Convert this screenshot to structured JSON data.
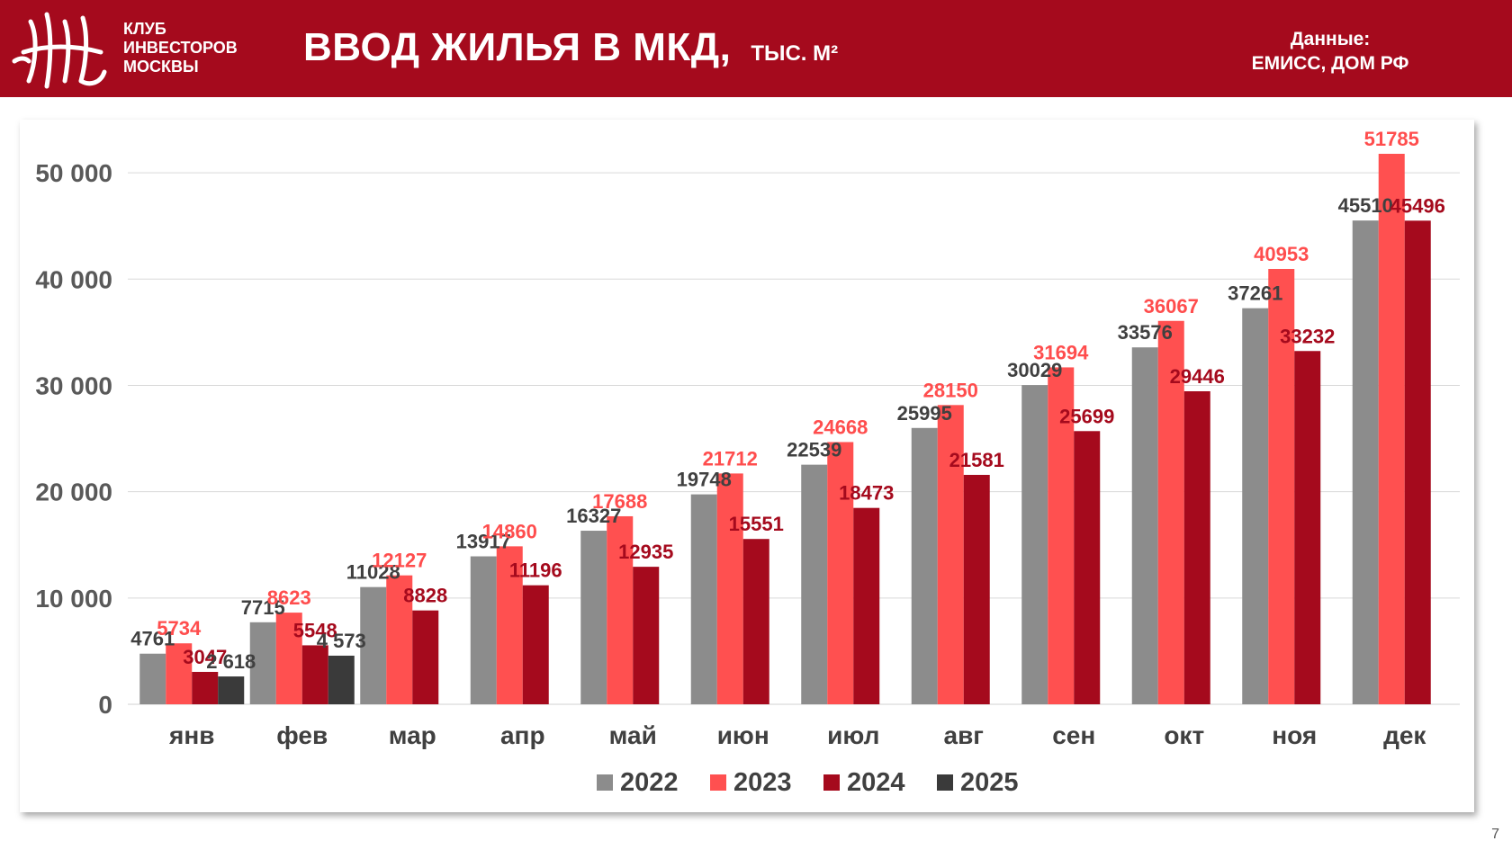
{
  "header": {
    "club_lines": [
      "КЛУБ",
      "ИНВЕСТОРОВ",
      "МОСКВЫ"
    ],
    "title": "ВВОД ЖИЛЬЯ В МКД,",
    "unit": "ТЫС. М²",
    "source_label": "Данные:",
    "source_value": "ЕМИСС, ДОМ РФ"
  },
  "page_number": "7",
  "colors": {
    "header_bg": "#a50a1d",
    "s2022": "#8c8c8c",
    "s2023": "#ff5050",
    "s2024": "#a50a1d",
    "s2025": "#3a3a3a"
  },
  "chart_data": {
    "type": "bar",
    "categories": [
      "янв",
      "фев",
      "мар",
      "апр",
      "май",
      "июн",
      "июл",
      "авг",
      "сен",
      "окт",
      "ноя",
      "дек"
    ],
    "ylim": [
      0,
      55000
    ],
    "yticks": [
      0,
      10000,
      20000,
      30000,
      40000,
      50000
    ],
    "ytick_labels": [
      "0",
      "10 000",
      "20 000",
      "30 000",
      "40 000",
      "50 000"
    ],
    "grid": true,
    "legend": "bottom",
    "series": [
      {
        "name": "2022",
        "color": "#8c8c8c",
        "label_color": "#404040",
        "values": [
          4761,
          7715,
          11028,
          13917,
          16327,
          19748,
          22539,
          25995,
          30029,
          33576,
          37261,
          45510
        ],
        "labels": [
          "4761",
          "7715",
          "11028",
          "13917",
          "16327",
          "19748",
          "22539",
          "25995",
          "30029",
          "33576",
          "37261",
          "45510"
        ]
      },
      {
        "name": "2023",
        "color": "#ff5050",
        "label_color": "#ff4d4d",
        "values": [
          5734,
          8623,
          12127,
          14860,
          17688,
          21712,
          24668,
          28150,
          31694,
          36067,
          40953,
          51785
        ],
        "labels": [
          "5734",
          "8623",
          "12127",
          "14860",
          "17688",
          "21712",
          "24668",
          "28150",
          "31694",
          "36067",
          "40953",
          "51785"
        ]
      },
      {
        "name": "2024",
        "color": "#a50a1d",
        "label_color": "#a50a1d",
        "values": [
          3047,
          5548,
          8828,
          11196,
          12935,
          15551,
          18473,
          21581,
          25699,
          29446,
          33232,
          45496
        ],
        "labels": [
          "3047",
          "5548",
          "8828",
          "11196",
          "12935",
          "15551",
          "18473",
          "21581",
          "25699",
          "29446",
          "33232",
          "45496"
        ]
      },
      {
        "name": "2025",
        "color": "#3a3a3a",
        "label_color": "#404040",
        "values": [
          2618,
          4573,
          null,
          null,
          null,
          null,
          null,
          null,
          null,
          null,
          null,
          null
        ],
        "labels": [
          "2 618",
          "4 573",
          null,
          null,
          null,
          null,
          null,
          null,
          null,
          null,
          null,
          null
        ]
      }
    ]
  }
}
